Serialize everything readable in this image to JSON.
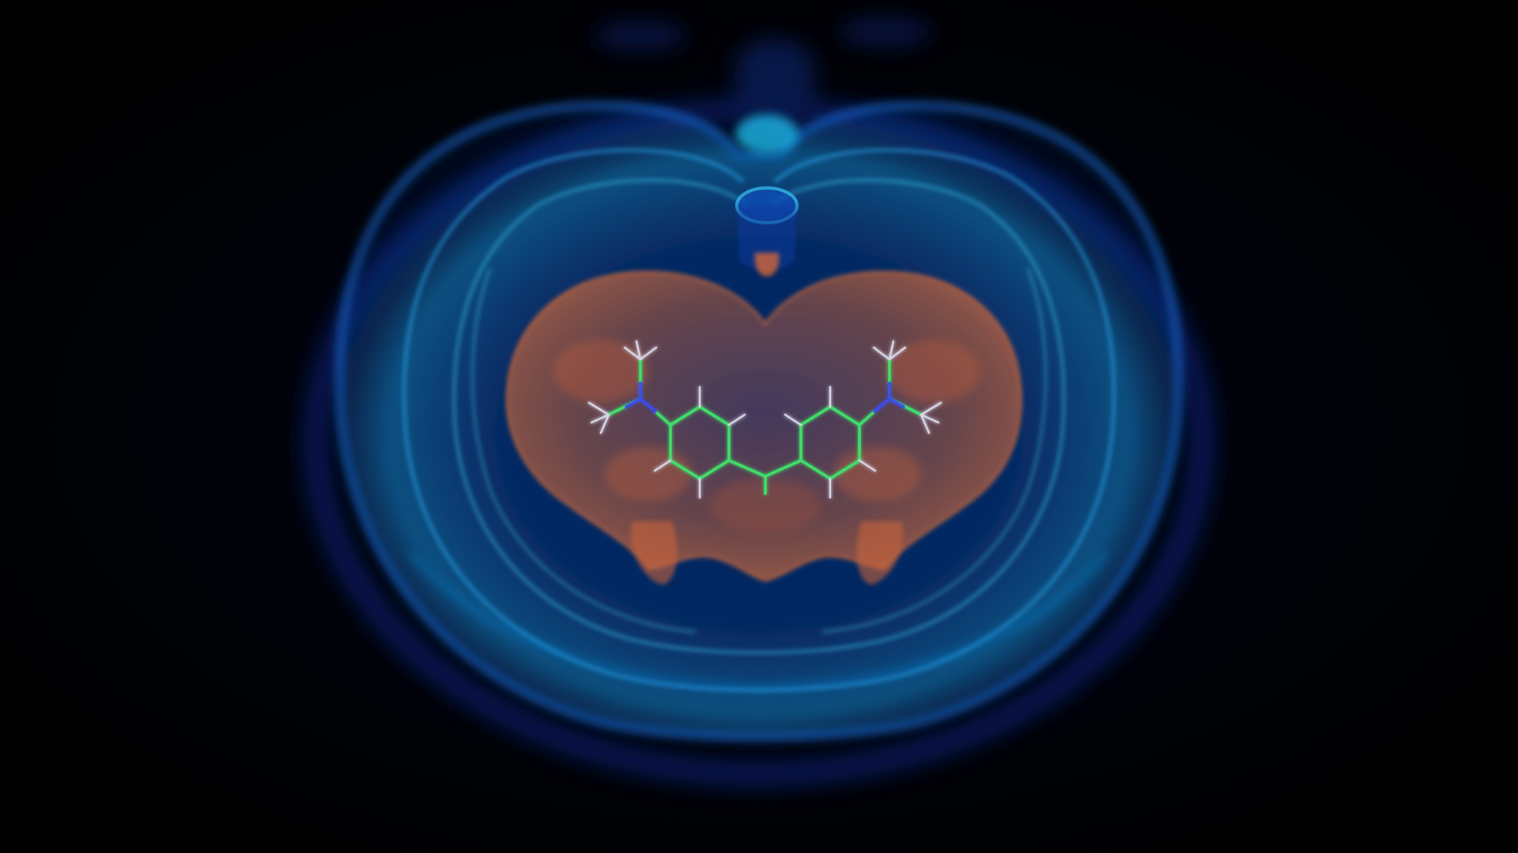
{
  "scene": {
    "subject": "brain-volume-render",
    "background_color": "#000000",
    "colors": {
      "outer_shell": "#0a3fb8",
      "shell_glow": "#1fa8e6",
      "inner_highlight": "#39d5f0",
      "core_region": "#c8643c",
      "molecule_bond": "#3fe06a",
      "nitrogen_atom": "#3a4cf0",
      "hydrogen_atom": "#d8d8e8"
    },
    "icons": [
      "brain-shell",
      "core-region",
      "molecule-overlay"
    ]
  }
}
